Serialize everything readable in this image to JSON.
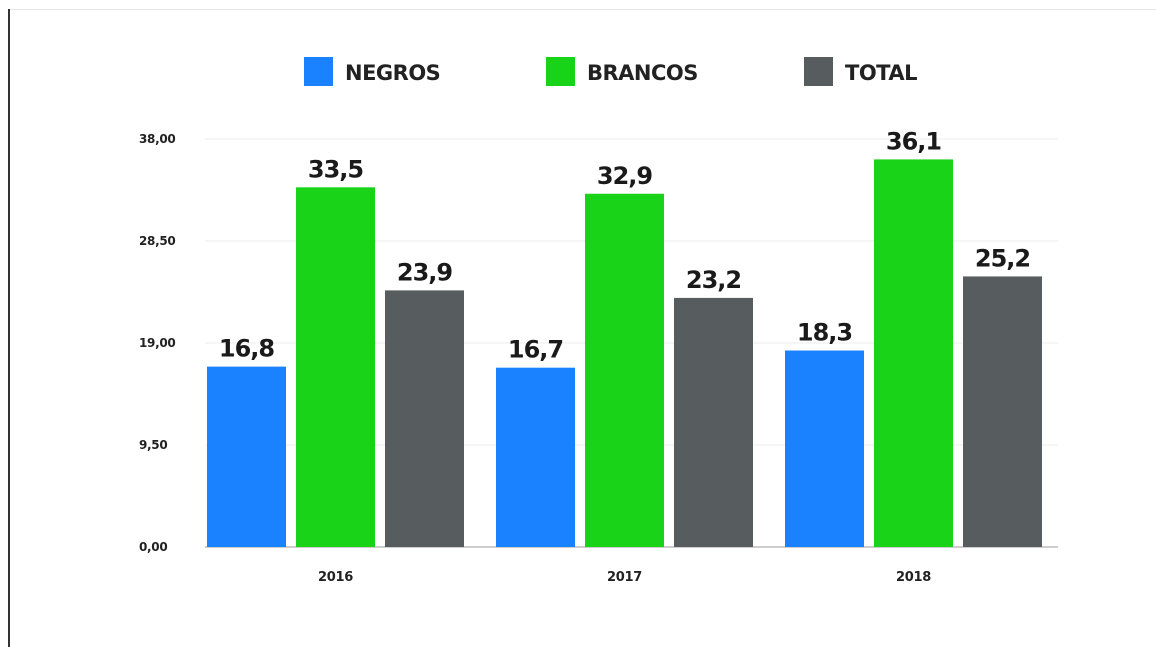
{
  "chart_data": {
    "type": "bar",
    "categories": [
      "2016",
      "2017",
      "2018"
    ],
    "series": [
      {
        "name": "NEGROS",
        "color": "#1a82ff",
        "values": [
          16.8,
          16.7,
          18.3
        ],
        "labels": [
          "16,8",
          "16,7",
          "18,3"
        ]
      },
      {
        "name": "BRANCOS",
        "color": "#18d318",
        "values": [
          33.5,
          32.9,
          36.1
        ],
        "labels": [
          "33,5",
          "32,9",
          "36,1"
        ]
      },
      {
        "name": "TOTAL",
        "color": "#575d5f",
        "values": [
          23.9,
          23.2,
          25.2
        ],
        "labels": [
          "23,9",
          "23,2",
          "25,2"
        ]
      }
    ],
    "y_ticks": [
      0,
      9.5,
      19,
      28.5,
      38
    ],
    "y_tick_labels": [
      "0,00",
      "9,50",
      "19,00",
      "28,50",
      "38,00"
    ],
    "ylim": [
      0,
      38
    ],
    "title": "",
    "xlabel": "",
    "ylabel": "",
    "grid": true,
    "legend_position": "top-center"
  }
}
